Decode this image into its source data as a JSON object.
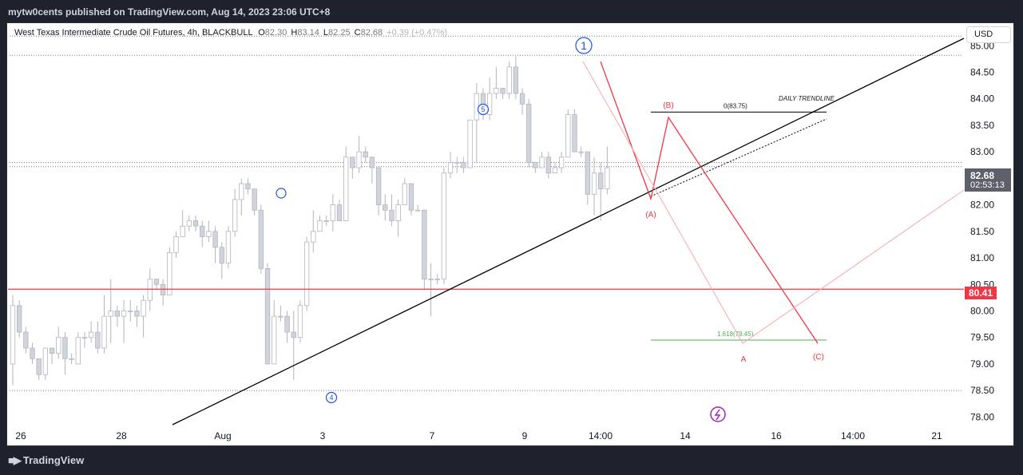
{
  "header": {
    "publisher": "mytw0cents published on TradingView.com, Aug 14, 2023 23:06 UTC+8"
  },
  "legend": {
    "title": "West Texas Intermediate Crude Oil Futures, 4h, BLACKBULL",
    "o_label": "O",
    "o_value": "82.30",
    "h_label": "H",
    "h_value": "83.14",
    "l_label": "L",
    "l_value": "82.25",
    "c_label": "C",
    "c_value": "82.68",
    "change": "+0.39 (+0.47%)"
  },
  "currency_button": "USD",
  "last_price": {
    "value": "82.68",
    "countdown": "02:53:13"
  },
  "level_tag": "80.41",
  "footer": {
    "brand": "TradingView"
  },
  "colors": {
    "background": "#ffffff",
    "candle_fill": "#d1d4dc",
    "candle_wick": "#b2b5be",
    "red": "#f23645",
    "blue": "#1e53e5",
    "green": "#089981",
    "purple": "#9c27b0"
  },
  "chart_data": {
    "type": "candlestick",
    "symbol": "West Texas Intermediate Crude Oil Futures",
    "interval": "4h",
    "y_ticks": [
      78.0,
      78.5,
      79.0,
      79.5,
      80.0,
      80.5,
      81.0,
      81.5,
      82.0,
      82.5,
      83.0,
      83.5,
      84.0,
      84.5,
      85.0
    ],
    "y_tick_labels": [
      "78.00",
      "78.50",
      "79.00",
      "79.50",
      "80.00",
      "80.50",
      "81.00",
      "81.50",
      "82.00",
      "",
      "83.00",
      "83.50",
      "84.00",
      "84.50",
      "85.00"
    ],
    "ylim": [
      77.78,
      85.32
    ],
    "x_tick_labels": [
      "26",
      "28",
      "Aug",
      "3",
      "7",
      "9",
      "14:00",
      "14",
      "16",
      "14:00",
      "21"
    ],
    "candles": [
      [
        79.0,
        80.1,
        80.3,
        78.6
      ],
      [
        80.1,
        79.6,
        80.2,
        79.5
      ],
      [
        79.6,
        79.3,
        79.7,
        79.2
      ],
      [
        79.3,
        79.1,
        79.4,
        79.0
      ],
      [
        79.1,
        78.8,
        79.1,
        78.7
      ],
      [
        78.8,
        79.3,
        79.3,
        78.7
      ],
      [
        79.3,
        79.2,
        79.3,
        79.0
      ],
      [
        79.2,
        79.5,
        79.7,
        79.1
      ],
      [
        79.5,
        79.1,
        79.6,
        78.8
      ],
      [
        79.1,
        79.1,
        79.2,
        79.0
      ],
      [
        79.0,
        79.5,
        79.6,
        79.0
      ],
      [
        79.5,
        79.5,
        79.6,
        79.3
      ],
      [
        79.5,
        79.6,
        79.8,
        79.4
      ],
      [
        79.6,
        79.3,
        79.8,
        79.2
      ],
      [
        79.3,
        79.9,
        80.3,
        79.2
      ],
      [
        79.9,
        80.0,
        80.6,
        79.4
      ],
      [
        80.0,
        79.9,
        80.1,
        79.7
      ],
      [
        79.9,
        80.0,
        80.2,
        79.4
      ],
      [
        80.0,
        80.0,
        80.2,
        79.8
      ],
      [
        80.0,
        79.9,
        80.1,
        79.7
      ],
      [
        79.9,
        80.2,
        80.3,
        79.5
      ],
      [
        80.2,
        80.6,
        80.8,
        80.0
      ],
      [
        80.6,
        80.5,
        80.6,
        80.4
      ],
      [
        80.5,
        80.3,
        80.6,
        80.1
      ],
      [
        80.3,
        81.1,
        81.2,
        80.3
      ],
      [
        81.1,
        81.4,
        81.5,
        81.0
      ],
      [
        81.4,
        81.6,
        81.9,
        81.4
      ],
      [
        81.6,
        81.7,
        81.8,
        81.5
      ],
      [
        81.7,
        81.6,
        81.8,
        81.5
      ],
      [
        81.6,
        81.4,
        81.7,
        81.2
      ],
      [
        81.4,
        81.5,
        81.7,
        81.3
      ],
      [
        81.5,
        81.2,
        81.6,
        80.9
      ],
      [
        81.2,
        80.9,
        81.3,
        80.6
      ],
      [
        80.9,
        81.5,
        81.6,
        80.8
      ],
      [
        81.5,
        82.1,
        82.3,
        81.4
      ],
      [
        82.1,
        82.4,
        82.5,
        81.8
      ],
      [
        82.4,
        82.3,
        82.5,
        82.2
      ],
      [
        82.3,
        81.9,
        82.3,
        81.8
      ],
      [
        81.9,
        80.8,
        82.0,
        80.7
      ],
      [
        80.8,
        79.0,
        80.9,
        79.0
      ],
      [
        79.0,
        79.9,
        80.2,
        79.0
      ],
      [
        79.9,
        79.9,
        80.1,
        79.8
      ],
      [
        79.9,
        79.6,
        80.0,
        79.4
      ],
      [
        79.6,
        79.5,
        80.0,
        78.7
      ],
      [
        79.5,
        80.1,
        80.2,
        79.4
      ],
      [
        80.1,
        81.3,
        81.4,
        80.0
      ],
      [
        81.3,
        81.5,
        81.9,
        81.1
      ],
      [
        81.5,
        81.7,
        81.8,
        81.5
      ],
      [
        81.7,
        81.7,
        81.8,
        81.6
      ],
      [
        81.7,
        82.0,
        82.2,
        81.5
      ],
      [
        82.0,
        81.7,
        82.1,
        81.7
      ],
      [
        81.7,
        82.9,
        83.1,
        81.7
      ],
      [
        82.9,
        82.7,
        82.9,
        82.5
      ],
      [
        82.7,
        83.0,
        83.3,
        82.6
      ],
      [
        83.0,
        82.9,
        83.1,
        82.8
      ],
      [
        82.9,
        82.7,
        82.9,
        82.4
      ],
      [
        82.7,
        82.0,
        82.7,
        81.8
      ],
      [
        82.0,
        81.9,
        82.2,
        81.7
      ],
      [
        81.9,
        81.7,
        82.2,
        81.6
      ],
      [
        81.7,
        82.0,
        82.1,
        81.4
      ],
      [
        82.0,
        82.4,
        82.5,
        82.0
      ],
      [
        82.4,
        81.9,
        82.4,
        81.8
      ],
      [
        81.9,
        81.9,
        82.0,
        81.9
      ],
      [
        81.9,
        80.6,
        81.9,
        80.4
      ],
      [
        80.6,
        80.6,
        80.9,
        79.9
      ],
      [
        80.6,
        80.6,
        80.7,
        80.5
      ],
      [
        80.6,
        82.6,
        82.7,
        80.5
      ],
      [
        82.6,
        82.8,
        83.0,
        82.5
      ],
      [
        82.8,
        82.8,
        82.9,
        82.6
      ],
      [
        82.8,
        82.7,
        82.9,
        82.6
      ],
      [
        82.7,
        83.6,
        83.6,
        82.7
      ],
      [
        83.6,
        84.1,
        84.3,
        82.8
      ],
      [
        84.1,
        83.7,
        84.2,
        83.6
      ],
      [
        83.7,
        84.1,
        84.4,
        83.6
      ],
      [
        84.1,
        84.2,
        84.6,
        84.0
      ],
      [
        84.2,
        84.1,
        84.2,
        84.0
      ],
      [
        84.1,
        84.6,
        84.7,
        84.0
      ],
      [
        84.6,
        84.1,
        84.8,
        84.0
      ],
      [
        84.1,
        83.9,
        84.2,
        83.7
      ],
      [
        83.9,
        82.8,
        84.0,
        82.7
      ],
      [
        82.8,
        82.7,
        82.8,
        82.6
      ],
      [
        82.7,
        82.9,
        83.0,
        82.7
      ],
      [
        82.9,
        82.6,
        83.0,
        82.5
      ],
      [
        82.6,
        82.7,
        82.8,
        82.6
      ],
      [
        82.7,
        82.9,
        83.0,
        82.6
      ],
      [
        82.9,
        83.7,
        83.8,
        82.9
      ],
      [
        83.7,
        83.0,
        83.8,
        83.0
      ],
      [
        83.0,
        83.0,
        83.1,
        82.9
      ],
      [
        83.0,
        82.2,
        83.0,
        82.0
      ],
      [
        82.2,
        82.6,
        82.9,
        81.8
      ],
      [
        82.6,
        82.3,
        82.8,
        81.7
      ],
      [
        82.3,
        82.7,
        83.1,
        82.2
      ]
    ],
    "annotations": {
      "labels": [
        "1",
        "5",
        "4",
        "(B)",
        "(A)",
        "(C)",
        "A",
        "0(83.75)",
        "1.618(79.45)",
        "DAILY TRENDLINE"
      ],
      "levels": [
        {
          "label": "0(83.75)",
          "price": 83.75
        },
        {
          "label": "1.618(79.45)",
          "price": 79.45
        },
        {
          "label": "80.41",
          "price": 80.41
        }
      ]
    }
  }
}
